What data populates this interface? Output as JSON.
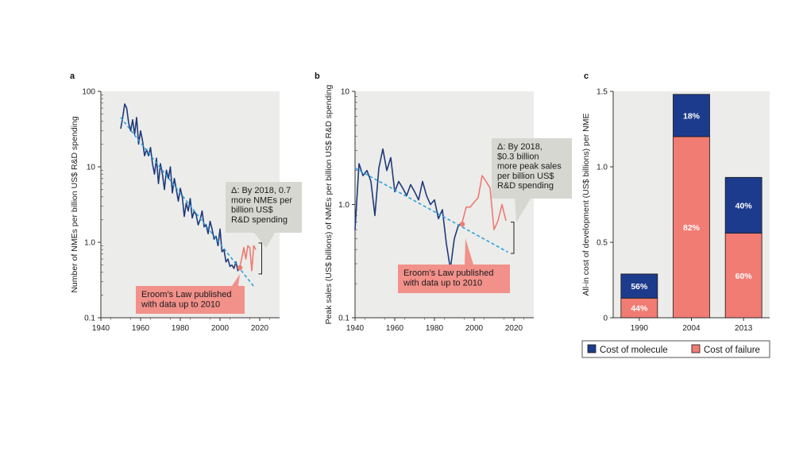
{
  "figure": {
    "panels": [
      {
        "letter": "a"
      },
      {
        "letter": "b"
      },
      {
        "letter": "c"
      }
    ],
    "colors": {
      "plot_bg": "#ececea",
      "navy": "#1f3a7a",
      "blue_fill": "#1d3b8c",
      "salmon": "#ee7a72",
      "salmon_fill": "#f07c74",
      "dashed": "#2aa3de",
      "annotation_bg": "#d7d7d2",
      "eroom_bg": "#f2908a"
    }
  },
  "chart_data": [
    {
      "type": "line",
      "panel": "a",
      "ylabel": "Number of NMEs per billion US$ R&D spending",
      "xlabel": "",
      "y_scale": "log",
      "xlim": [
        1940,
        2030
      ],
      "ylim": [
        0.1,
        100
      ],
      "x_ticks": [
        1940,
        1960,
        1980,
        2000,
        2020
      ],
      "y_ticks": [
        0.1,
        1.0,
        10,
        100
      ],
      "y_tick_labels": [
        "0.1",
        "1.0",
        "10",
        "100"
      ],
      "grid": false,
      "series": [
        {
          "role": "observed",
          "x": [
            1950,
            1951,
            1952,
            1953,
            1954,
            1955,
            1956,
            1957,
            1958,
            1959,
            1960,
            1961,
            1962,
            1963,
            1964,
            1965,
            1966,
            1967,
            1968,
            1969,
            1970,
            1971,
            1972,
            1973,
            1974,
            1975,
            1976,
            1977,
            1978,
            1979,
            1980,
            1981,
            1982,
            1983,
            1984,
            1985,
            1986,
            1987,
            1988,
            1989,
            1990,
            1991,
            1992,
            1993,
            1994,
            1995,
            1996,
            1997,
            1998,
            1999,
            2000,
            2001,
            2002,
            2003,
            2004,
            2005,
            2006,
            2007,
            2008,
            2009,
            2010
          ],
          "y": [
            32,
            45,
            68,
            60,
            38,
            30,
            42,
            27,
            45,
            20,
            30,
            22,
            14,
            17,
            14,
            18,
            11,
            8,
            13,
            6,
            11,
            8,
            5,
            9,
            7,
            10,
            4.5,
            7,
            5,
            3.5,
            5.2,
            4,
            2.2,
            3.3,
            2.6,
            3.8,
            2.1,
            2.6,
            2.3,
            1.7,
            2,
            2.6,
            1.6,
            1.7,
            1.3,
            1.9,
            1.5,
            1.1,
            1.2,
            0.9,
            1.5,
            0.75,
            0.8,
            0.55,
            0.6,
            0.48,
            0.5,
            0.45,
            0.55,
            0.42,
            0.48
          ]
        },
        {
          "role": "post-publication",
          "x": [
            2010,
            2011,
            2012,
            2013,
            2014,
            2015,
            2016,
            2017,
            2018
          ],
          "y": [
            0.48,
            0.62,
            0.85,
            0.6,
            0.9,
            0.85,
            0.42,
            0.9,
            0.8
          ]
        },
        {
          "role": "trend",
          "x": [
            1950,
            2017
          ],
          "y": [
            45,
            0.26
          ]
        }
      ],
      "highlight_point": {
        "x": 2010,
        "y": 0.46
      },
      "bracket": {
        "x": 2021,
        "y_low": 0.38,
        "y_high": 0.98
      },
      "annotations": [
        {
          "role": "delta",
          "text": [
            "Δ: By 2018, 0.7",
            "more NMEs per",
            "billion US$",
            "R&D spending"
          ]
        },
        {
          "role": "eroom",
          "text": [
            "Eroom’s Law published",
            "with data up to 2010"
          ]
        }
      ]
    },
    {
      "type": "line",
      "panel": "b",
      "ylabel": "Peak sales (US$ billions) of NMEs per billion US$ R&D spending",
      "xlabel": "",
      "y_scale": "log",
      "xlim": [
        1940,
        2030
      ],
      "ylim": [
        0.1,
        10
      ],
      "x_ticks": [
        1940,
        1960,
        1980,
        2000,
        2020
      ],
      "y_ticks": [
        0.1,
        1.0,
        10
      ],
      "y_tick_labels": [
        "0.1",
        "1.0",
        "10"
      ],
      "grid": false,
      "series": [
        {
          "role": "observed",
          "x": [
            1940,
            1942,
            1944,
            1946,
            1948,
            1950,
            1952,
            1954,
            1956,
            1958,
            1960,
            1962,
            1964,
            1966,
            1968,
            1970,
            1972,
            1974,
            1976,
            1978,
            1980,
            1982,
            1984,
            1986,
            1988,
            1990,
            1992,
            1994
          ],
          "y": [
            0.6,
            2.3,
            1.8,
            2.0,
            1.6,
            0.8,
            2.1,
            3.1,
            2.0,
            2.6,
            1.3,
            1.6,
            1.4,
            1.2,
            1.5,
            1.3,
            1.1,
            1.6,
            1.2,
            1.0,
            1.1,
            0.75,
            0.9,
            0.45,
            0.27,
            0.5,
            0.65,
            0.7
          ]
        },
        {
          "role": "post-publication",
          "x": [
            1994,
            1996,
            1998,
            2000,
            2002,
            2004,
            2006,
            2008,
            2010,
            2012,
            2014,
            2016
          ],
          "y": [
            0.7,
            0.95,
            0.95,
            1.05,
            1.15,
            1.8,
            1.6,
            1.4,
            0.6,
            0.72,
            1.0,
            0.72
          ]
        },
        {
          "role": "trend",
          "x": [
            1940,
            2017
          ],
          "y": [
            2.1,
            0.38
          ]
        }
      ],
      "highlight_point": {
        "x": 1994,
        "y": 0.67
      },
      "bracket": {
        "x": 2020,
        "y_low": 0.37,
        "y_high": 0.7
      },
      "annotations": [
        {
          "role": "delta",
          "text": [
            "Δ: By 2018,",
            "$0.3 billion",
            "more peak sales",
            "per billion US$",
            "R&D spending"
          ]
        },
        {
          "role": "eroom",
          "text": [
            "Eroom’s Law published",
            "with data up to 2010"
          ]
        }
      ]
    },
    {
      "type": "bar",
      "panel": "c",
      "stacked": true,
      "ylabel": "All-in cost of development (US$ billions) per NME",
      "xlabel": "",
      "categories": [
        "1990",
        "2004",
        "2013"
      ],
      "ylim": [
        0,
        1.5
      ],
      "y_ticks": [
        0,
        0.5,
        1.0,
        1.5
      ],
      "y_tick_labels": [
        "0",
        "0.5",
        "1.0",
        "1.5"
      ],
      "grid": false,
      "series": [
        {
          "name": "Cost of failure",
          "values": [
            0.13,
            1.2,
            0.56
          ],
          "labels": [
            "44%",
            "82%",
            "60%"
          ]
        },
        {
          "name": "Cost of molecule",
          "values": [
            0.16,
            0.28,
            0.37
          ],
          "labels": [
            "56%",
            "18%",
            "40%"
          ]
        }
      ],
      "legend": {
        "placement": "bottom",
        "entries": [
          {
            "name": "Cost of molecule"
          },
          {
            "name": "Cost of failure"
          }
        ]
      }
    }
  ]
}
